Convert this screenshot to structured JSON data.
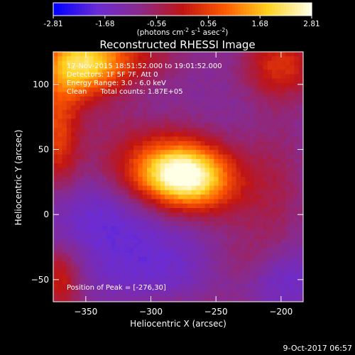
{
  "chart_data": {
    "type": "heatmap",
    "title": "Reconstructed RHESSI Image",
    "xlabel": "Heliocentric X (arcsec)",
    "ylabel": "Heliocentric Y (arcsec)",
    "xlim": [
      -375,
      -183
    ],
    "ylim": [
      -67,
      125
    ],
    "xticks": [
      -350,
      -300,
      -250,
      -200
    ],
    "yticks": [
      -50,
      0,
      50,
      100
    ],
    "colorbar": {
      "range": [
        -2.81,
        2.81
      ],
      "ticks": [
        "-2.81",
        "-1.68",
        "-0.56",
        "0.56",
        "1.68",
        "2.81"
      ],
      "label_main": "(photons cm",
      "label_sup1": "-2",
      "label_mid1": " s",
      "label_sup2": "-1",
      "label_mid2": " asec",
      "label_sup3": "-2",
      "label_end": ")",
      "colormap": [
        "#0000ff",
        "#6a2cd4",
        "#8a2a8a",
        "#c01414",
        "#ff5a00",
        "#ffd21e",
        "#ffffe6"
      ]
    },
    "annotations": [
      "17-Nov-2015 18:51:52.000 to 19:01:52.000",
      "Detectors: 1F 5F 7F, Att 0",
      "Energy Range: 3.0 - 6.0 keV",
      "Clean      Total counts: 1.87E+05"
    ],
    "peak_label": "Position of Peak = [-276,30]",
    "peak": [
      -276,
      30
    ],
    "components": [
      {
        "x": -276,
        "y": 30,
        "amp": 3.6,
        "sx": 24,
        "sy": 17
      },
      {
        "x": -305,
        "y": 35,
        "amp": 1.1,
        "sx": 34,
        "sy": 26
      },
      {
        "x": -248,
        "y": 18,
        "amp": 0.7,
        "sx": 22,
        "sy": 20
      },
      {
        "x": -355,
        "y": 112,
        "amp": 2.2,
        "sx": 22,
        "sy": 20
      },
      {
        "x": -335,
        "y": 120,
        "amp": 1.4,
        "sx": 35,
        "sy": 14
      },
      {
        "x": -372,
        "y": 60,
        "amp": 1.6,
        "sx": 12,
        "sy": 30
      },
      {
        "x": -370,
        "y": -50,
        "amp": 1.4,
        "sx": 12,
        "sy": 18
      },
      {
        "x": -200,
        "y": 115,
        "amp": 1.5,
        "sx": 20,
        "sy": 18
      },
      {
        "x": -205,
        "y": 20,
        "amp": 0.6,
        "sx": 18,
        "sy": 40
      },
      {
        "x": -225,
        "y": -40,
        "amp": 0.9,
        "sx": 22,
        "sy": 18
      },
      {
        "x": -275,
        "y": -70,
        "amp": 0.4,
        "sx": 40,
        "sy": 8
      }
    ],
    "background": -1.15,
    "troughs": [
      {
        "x": -330,
        "y": 5,
        "amp": -0.9,
        "sx": 40,
        "sy": 22
      },
      {
        "x": -205,
        "y": -48,
        "amp": -1.0,
        "sx": 22,
        "sy": 18
      },
      {
        "x": -300,
        "y": -40,
        "amp": -0.6,
        "sx": 45,
        "sy": 22
      }
    ]
  },
  "footer": {
    "date": "9-Oct-2017 06:57"
  }
}
